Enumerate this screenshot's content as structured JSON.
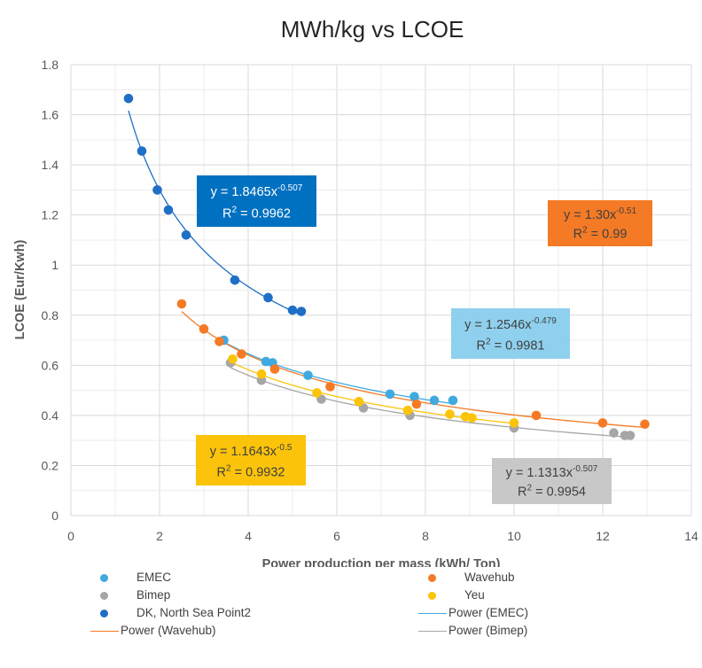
{
  "chart_data": {
    "type": "scatter",
    "title": "MWh/kg vs LCOE",
    "xlabel": "Power production per mass (kWh/ Ton)",
    "ylabel": "LCOE (Eur/Kwh)",
    "xlim": [
      0,
      14
    ],
    "ylim": [
      0,
      1.8
    ],
    "x_ticks": [
      0,
      2,
      4,
      6,
      8,
      10,
      12,
      14
    ],
    "y_ticks": [
      0,
      0.2,
      0.4,
      0.6,
      0.8,
      1,
      1.2,
      1.4,
      1.6,
      1.8
    ],
    "x_tick_labels": [
      "0",
      "2",
      "4",
      "6",
      "8",
      "10",
      "12",
      "14"
    ],
    "y_tick_labels": [
      "0",
      "0.2",
      "0.4",
      "0.6",
      "0.8",
      "1",
      "1.2",
      "1.4",
      "1.6",
      "1.8"
    ],
    "grid": true,
    "series": [
      {
        "name": "EMEC",
        "color": "#3fa9e0",
        "x": [
          3.45,
          4.4,
          4.55,
          5.35,
          7.2,
          7.75,
          8.2,
          8.62
        ],
        "y": [
          0.7,
          0.615,
          0.61,
          0.56,
          0.485,
          0.475,
          0.46,
          0.46
        ],
        "trend": {
          "a": 1.2546,
          "b": -0.479,
          "x_range": [
            3.45,
            8.62
          ]
        }
      },
      {
        "name": "Wavehub",
        "color": "#f47a26",
        "x": [
          2.5,
          3.0,
          3.35,
          3.85,
          4.6,
          5.85,
          7.8,
          10.5,
          12.0,
          12.95
        ],
        "y": [
          0.845,
          0.745,
          0.695,
          0.645,
          0.585,
          0.515,
          0.445,
          0.4,
          0.37,
          0.365
        ],
        "trend": {
          "a": 1.3,
          "b": -0.51,
          "x_range": [
            2.5,
            12.95
          ]
        }
      },
      {
        "name": "Bimep",
        "color": "#a6a6a6",
        "x": [
          3.6,
          4.3,
          5.65,
          6.6,
          7.65,
          10.0,
          12.25,
          12.5,
          12.62
        ],
        "y": [
          0.61,
          0.54,
          0.465,
          0.43,
          0.4,
          0.35,
          0.33,
          0.32,
          0.32
        ],
        "trend": {
          "a": 1.1313,
          "b": -0.507,
          "x_range": [
            3.6,
            12.62
          ]
        }
      },
      {
        "name": "Yeu",
        "color": "#fbc30a",
        "x": [
          3.65,
          4.3,
          5.55,
          6.5,
          7.6,
          8.55,
          8.9,
          9.05,
          10.0
        ],
        "y": [
          0.625,
          0.565,
          0.49,
          0.455,
          0.42,
          0.405,
          0.395,
          0.39,
          0.37
        ],
        "trend": {
          "a": 1.1643,
          "b": -0.5,
          "x_range": [
            3.65,
            10.0
          ]
        }
      },
      {
        "name": "DK, North Sea Point2",
        "color": "#1f6fc6",
        "x": [
          1.3,
          1.6,
          1.95,
          2.2,
          2.6,
          3.7,
          4.45,
          5.0,
          5.2
        ],
        "y": [
          1.665,
          1.455,
          1.3,
          1.22,
          1.12,
          0.94,
          0.87,
          0.82,
          0.815
        ],
        "trend": {
          "a": 1.8465,
          "b": -0.507,
          "x_range": [
            1.3,
            5.2
          ]
        }
      }
    ],
    "annotations": [
      {
        "series": "DK, North Sea Point2",
        "bg": "#0070c0",
        "fg": "#ffffff",
        "eq_coef": "y = 1.8465x",
        "eq_exp": "-0.507",
        "r2_value": " = 0.9962"
      },
      {
        "series": "Wavehub",
        "bg": "#f47a26",
        "fg": "#404040",
        "eq_coef": "y = 1.30x",
        "eq_exp": "-0.51",
        "r2_value": " = 0.99"
      },
      {
        "series": "EMEC",
        "bg": "#8ed0ee",
        "fg": "#404040",
        "eq_coef": "y = 1.2546x",
        "eq_exp": "-0.479",
        "r2_value": " = 0.9981"
      },
      {
        "series": "Yeu",
        "bg": "#fbc30a",
        "fg": "#404040",
        "eq_coef": "y = 1.1643x",
        "eq_exp": "-0.5",
        "r2_value": " = 0.9932"
      },
      {
        "series": "Bimep",
        "bg": "#c8c8c8",
        "fg": "#404040",
        "eq_coef": "y = 1.1313x",
        "eq_exp": "-0.507",
        "r2_value": " = 0.9954"
      }
    ],
    "legend": {
      "position": "bottom",
      "items": [
        {
          "label": "EMEC",
          "kind": "marker",
          "color": "#3fa9e0"
        },
        {
          "label": "Wavehub",
          "kind": "marker",
          "color": "#f47a26"
        },
        {
          "label": "Bimep",
          "kind": "marker",
          "color": "#a6a6a6"
        },
        {
          "label": "Yeu",
          "kind": "marker",
          "color": "#fbc30a"
        },
        {
          "label": "DK, North Sea Point2",
          "kind": "marker",
          "color": "#1f6fc6"
        },
        {
          "label": "Power (EMEC)",
          "kind": "line",
          "color": "#3fa9e0"
        },
        {
          "label": "Power (Wavehub)",
          "kind": "line",
          "color": "#f47a26"
        },
        {
          "label": "Power (Bimep)",
          "kind": "line",
          "color": "#a6a6a6"
        }
      ]
    }
  }
}
